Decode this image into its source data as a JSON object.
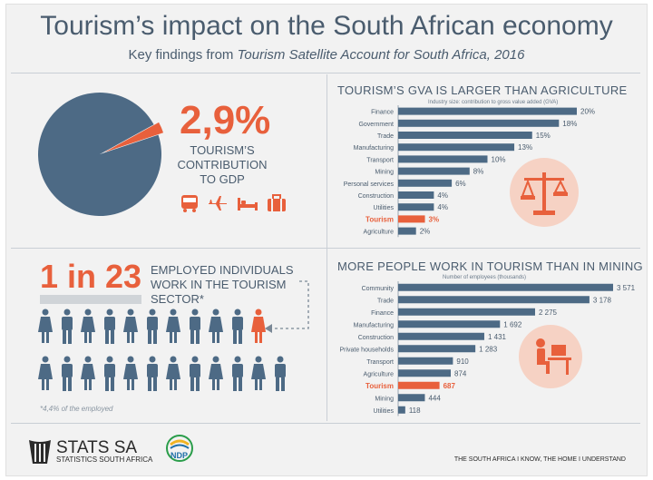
{
  "header": {
    "title": "Tourism’s impact on the South African economy",
    "subtitle_prefix": "Key findings from ",
    "subtitle_italic": "Tourism Satellite Account for South Africa, 2016"
  },
  "gdp": {
    "value_label": "2,9%",
    "share": 0.029,
    "label": "TOURISM’S\nCONTRIBUTION\nTO GDP",
    "icons": [
      "bus-icon",
      "plane-icon",
      "bed-icon",
      "suitcase-icon"
    ]
  },
  "employment": {
    "ratio": "1 in 23",
    "label": "EMPLOYED INDIVIDUALS\nWORK IN THE TOURISM\nSECTOR*",
    "footnote": "*4,4% of the employed",
    "people_total": 23,
    "highlight_index": 10
  },
  "chart_data": [
    {
      "type": "bar",
      "title": "TOURISM’S GVA IS LARGER THAN AGRICULTURE",
      "xlabel": "Industry size: contribution to gross value added (GVA)",
      "categories": [
        "Finance",
        "Government",
        "Trade",
        "Manufacturing",
        "Transport",
        "Mining",
        "Personal services",
        "Construction",
        "Utilities",
        "Tourism",
        "Agriculture"
      ],
      "values": [
        20,
        18,
        15,
        13,
        10,
        8,
        6,
        4,
        4,
        3,
        2
      ],
      "value_labels": [
        "20%",
        "18%",
        "15%",
        "13%",
        "10%",
        "8%",
        "6%",
        "4%",
        "4%",
        "3%",
        "2%"
      ],
      "highlight": "Tourism",
      "xlim": [
        0,
        20
      ]
    },
    {
      "type": "bar",
      "title": "MORE PEOPLE WORK IN TOURISM THAN IN MINING",
      "xlabel": "Number of employees (thousands)",
      "categories": [
        "Community",
        "Trade",
        "Finance",
        "Manufacturing",
        "Construction",
        "Private households",
        "Transport",
        "Agriculture",
        "Tourism",
        "Mining",
        "Utilities"
      ],
      "values": [
        3571,
        3178,
        2275,
        1692,
        1431,
        1283,
        910,
        874,
        687,
        444,
        118
      ],
      "value_labels": [
        "3 571",
        "3 178",
        "2 275",
        "1 692",
        "1 431",
        "1 283",
        "910",
        "874",
        "687",
        "444",
        "118"
      ],
      "highlight": "Tourism",
      "xlim": [
        0,
        3571
      ]
    }
  ],
  "footer": {
    "logo_text": "STATS SA",
    "logo_sub": "STATISTICS SOUTH AFRICA",
    "ndp_text": "NDP",
    "tagline": "THE SOUTH AFRICA I KNOW, THE HOME I UNDERSTAND"
  },
  "colors": {
    "slate": "#4d6a85",
    "orange": "#e8603c",
    "circle_bg": "#f6d2c4"
  }
}
